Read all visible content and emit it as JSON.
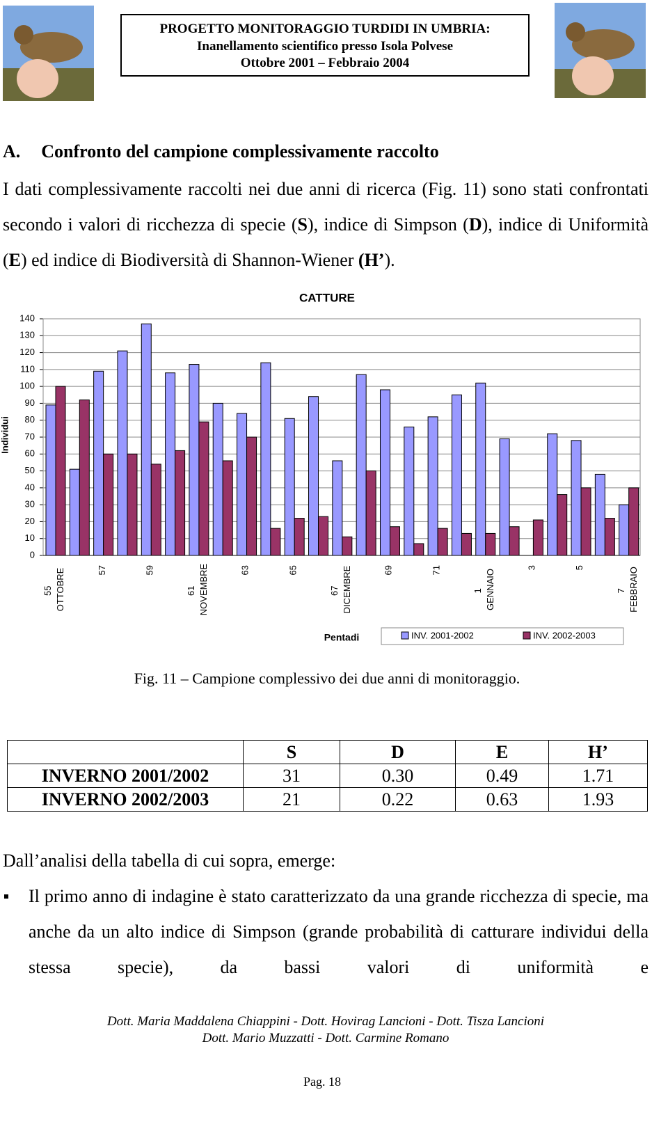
{
  "header": {
    "lines": [
      "PROGETTO MONITORAGGIO TURDIDI IN UMBRIA:",
      "Inanellamento scientifico presso Isola Polvese",
      "Ottobre 2001 – Febbraio 2004"
    ]
  },
  "section": {
    "number": "A.",
    "title": "Confronto del campione complessivamente raccolto"
  },
  "paragraph": [
    "I dati complessivamente raccolti nei due anni di ricerca (Fig. 11) sono stati confrontati secondo i valori di ricchezza di specie (",
    "S",
    "), indice di Simpson (",
    "D",
    "), indice di Uniformità (",
    "E",
    ") ed indice di Biodiversità di Shannon-Wiener ",
    "(H’",
    ")."
  ],
  "chart_data": {
    "type": "bar",
    "title": "CATTURE",
    "y_label": "Individui",
    "x_label": "Pentadi",
    "categories": [
      "55 OTTOBRE",
      null,
      "57",
      null,
      "59",
      null,
      "61 NOVEMBRE",
      null,
      "63",
      null,
      "65",
      null,
      "67 DICEMBRE",
      null,
      "69",
      null,
      "71",
      null,
      "1 GENNAIO",
      null,
      "3",
      null,
      "5",
      null,
      "7 FEBBRAIO"
    ],
    "series": [
      {
        "name": "INV. 2001-2002",
        "color": "#9999ff",
        "values": [
          89,
          51,
          109,
          121,
          137,
          108,
          113,
          90,
          84,
          114,
          81,
          94,
          56,
          107,
          98,
          76,
          82,
          95,
          102,
          69,
          null,
          72,
          68,
          48,
          30
        ]
      },
      {
        "name": "INV. 2002-2003",
        "color": "#993366",
        "values": [
          100,
          92,
          60,
          60,
          54,
          62,
          79,
          56,
          70,
          16,
          22,
          23,
          11,
          50,
          17,
          7,
          16,
          13,
          13,
          17,
          21,
          36,
          40,
          22,
          40
        ]
      }
    ],
    "ylim": [
      0,
      140
    ],
    "yticks": [
      0,
      10,
      20,
      30,
      40,
      50,
      60,
      70,
      80,
      90,
      100,
      110,
      120,
      130,
      140
    ],
    "grid": true,
    "legend": "bottom-right"
  },
  "caption": "Fig. 11 – Campione complessivo dei due anni di monitoraggio.",
  "table": {
    "header": [
      "",
      "S",
      "D",
      "E",
      "H’"
    ],
    "rows": [
      [
        "INVERNO 2001/2002",
        "31",
        "0.30",
        "0.49",
        "1.71"
      ],
      [
        "INVERNO 2002/2003",
        "21",
        "0.22",
        "0.63",
        "1.93"
      ]
    ]
  },
  "intro": "Dall’analisi della tabella di cui sopra, emerge:",
  "bullets": [
    "Il primo anno di indagine è stato caratterizzato da una grande ricchezza di specie, ma anche da un alto indice di Simpson (grande probabilità di catturare individui della stessa specie), da bassi valori di uniformità e"
  ],
  "footer": {
    "lines": [
      "Dott. Maria Maddalena Chiappini - Dott. Hovirag Lancioni - Dott. Tisza Lancioni",
      "Dott. Mario Muzzatti - Dott. Carmine Romano"
    ],
    "page": "Pag. 18"
  }
}
